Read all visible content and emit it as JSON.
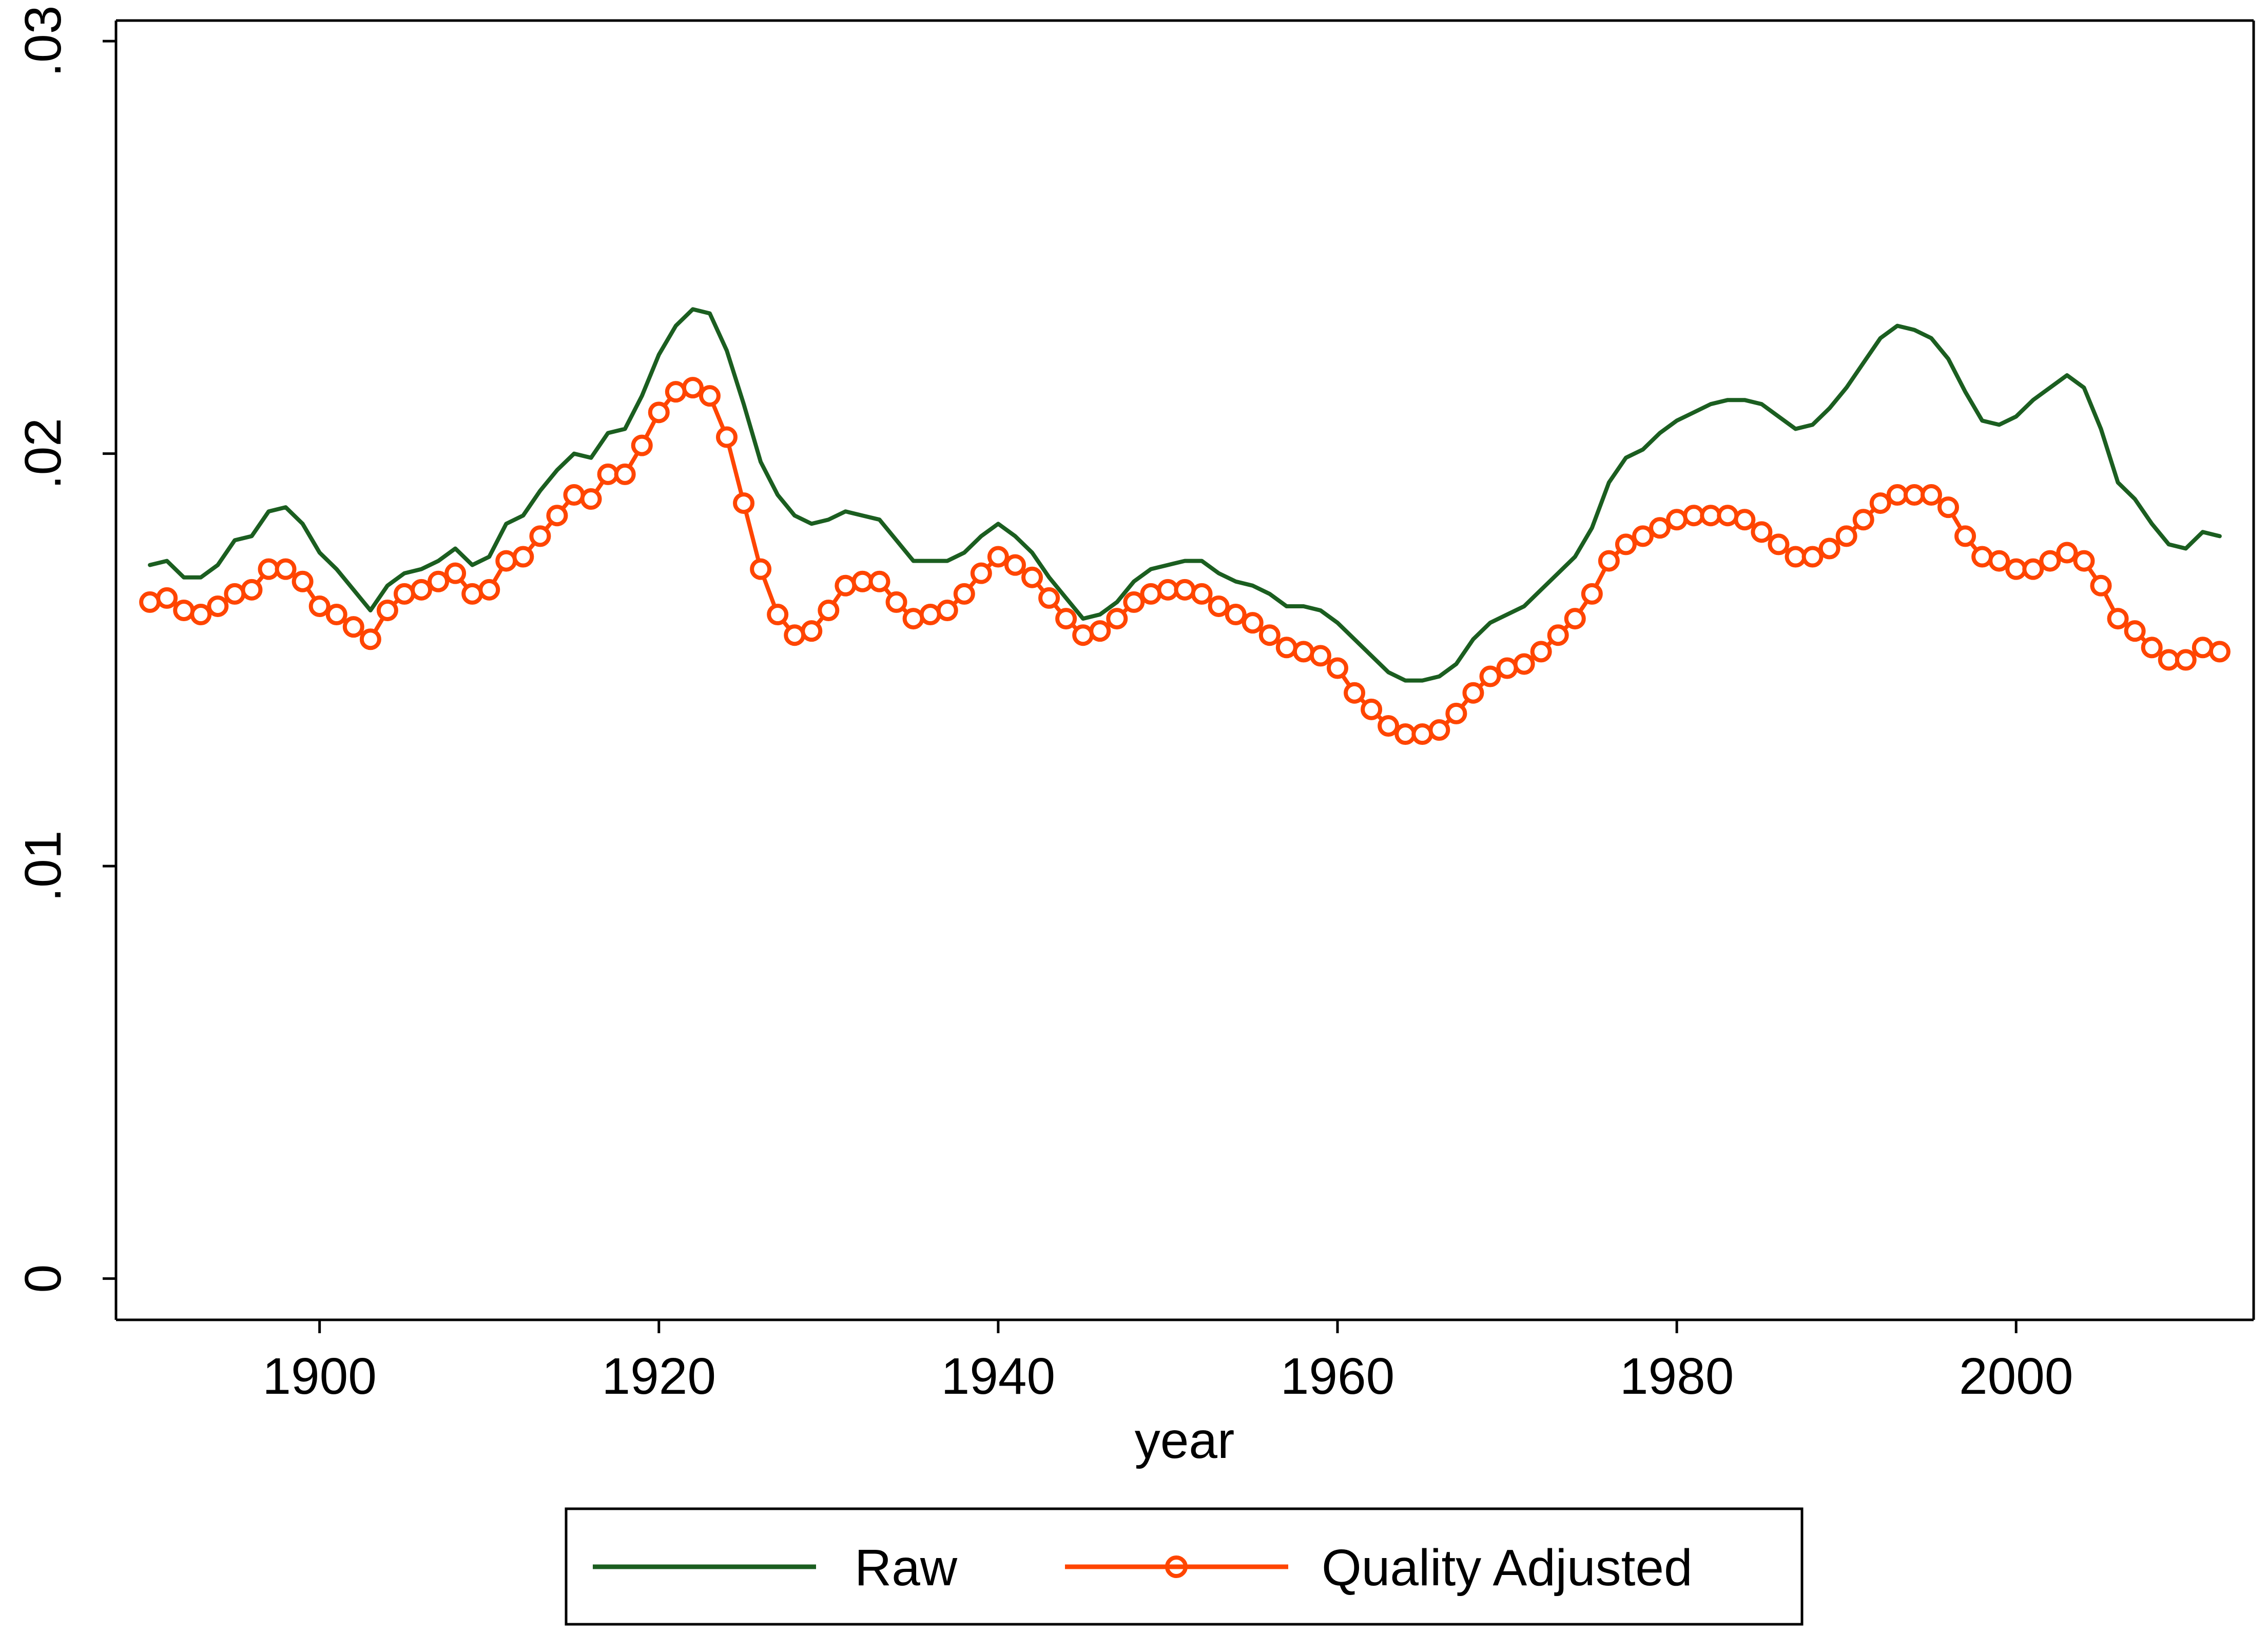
{
  "chart_data": {
    "type": "line",
    "title": "",
    "xlabel": "year",
    "ylabel": "",
    "xlim": [
      1888,
      2014
    ],
    "ylim": [
      -0.001,
      0.0305
    ],
    "x_ticks": [
      1900,
      1920,
      1940,
      1960,
      1980,
      2000
    ],
    "x_tick_labels": [
      "1900",
      "1920",
      "1940",
      "1960",
      "1980",
      "2000"
    ],
    "y_ticks": [
      0,
      0.01,
      0.02,
      0.03
    ],
    "y_tick_labels": [
      "0",
      ".01",
      ".02",
      ".03"
    ],
    "grid": false,
    "legend": {
      "position": "bottom",
      "entries": [
        "Raw",
        "Quality Adjusted"
      ]
    },
    "x": [
      1890,
      1891,
      1892,
      1893,
      1894,
      1895,
      1896,
      1897,
      1898,
      1899,
      1900,
      1901,
      1902,
      1903,
      1904,
      1905,
      1906,
      1907,
      1908,
      1909,
      1910,
      1911,
      1912,
      1913,
      1914,
      1915,
      1916,
      1917,
      1918,
      1919,
      1920,
      1921,
      1922,
      1923,
      1924,
      1925,
      1926,
      1927,
      1928,
      1929,
      1930,
      1931,
      1932,
      1933,
      1934,
      1935,
      1936,
      1937,
      1938,
      1939,
      1940,
      1941,
      1942,
      1943,
      1944,
      1945,
      1946,
      1947,
      1948,
      1949,
      1950,
      1951,
      1952,
      1953,
      1954,
      1955,
      1956,
      1957,
      1958,
      1959,
      1960,
      1961,
      1962,
      1963,
      1964,
      1965,
      1966,
      1967,
      1968,
      1969,
      1970,
      1971,
      1972,
      1973,
      1974,
      1975,
      1976,
      1977,
      1978,
      1979,
      1980,
      1981,
      1982,
      1983,
      1984,
      1985,
      1986,
      1987,
      1988,
      1989,
      1990,
      1991,
      1992,
      1993,
      1994,
      1995,
      1996,
      1997,
      1998,
      1999,
      2000,
      2001,
      2002,
      2003,
      2004,
      2005,
      2006,
      2007,
      2008,
      2009,
      2010,
      2011,
      2012
    ],
    "series": [
      {
        "name": "Raw",
        "color": "#1b5e20",
        "marker": "none",
        "values": [
          0.0173,
          0.0174,
          0.017,
          0.017,
          0.0173,
          0.0179,
          0.018,
          0.0186,
          0.0187,
          0.0183,
          0.0176,
          0.0172,
          0.0167,
          0.0162,
          0.0168,
          0.0171,
          0.0172,
          0.0174,
          0.0177,
          0.0173,
          0.0175,
          0.0183,
          0.0185,
          0.0191,
          0.0196,
          0.02,
          0.0199,
          0.0205,
          0.0206,
          0.0214,
          0.0224,
          0.0231,
          0.0235,
          0.0234,
          0.0225,
          0.0212,
          0.0198,
          0.019,
          0.0185,
          0.0183,
          0.0184,
          0.0186,
          0.0185,
          0.0184,
          0.0179,
          0.0174,
          0.0174,
          0.0174,
          0.0176,
          0.018,
          0.0183,
          0.018,
          0.0176,
          0.017,
          0.0165,
          0.016,
          0.0161,
          0.0164,
          0.0169,
          0.0172,
          0.0173,
          0.0174,
          0.0174,
          0.0171,
          0.0169,
          0.0168,
          0.0166,
          0.0163,
          0.0163,
          0.0162,
          0.0159,
          0.0155,
          0.0151,
          0.0147,
          0.0145,
          0.0145,
          0.0146,
          0.0149,
          0.0155,
          0.0159,
          0.0161,
          0.0163,
          0.0167,
          0.0171,
          0.0175,
          0.0182,
          0.0193,
          0.0199,
          0.0201,
          0.0205,
          0.0208,
          0.021,
          0.0212,
          0.0213,
          0.0213,
          0.0212,
          0.0209,
          0.0206,
          0.0207,
          0.0211,
          0.0216,
          0.0222,
          0.0228,
          0.0231,
          0.023,
          0.0228,
          0.0223,
          0.0215,
          0.0208,
          0.0207,
          0.0209,
          0.0213,
          0.0216,
          0.0219,
          0.0216,
          0.0206,
          0.0193,
          0.0189,
          0.0183,
          0.0178,
          0.0177,
          0.0181,
          0.018
        ]
      },
      {
        "name": "Quality Adjusted",
        "color": "#ff4500",
        "marker": "circle",
        "values": [
          0.0164,
          0.0165,
          0.0162,
          0.0161,
          0.0163,
          0.0166,
          0.0167,
          0.0172,
          0.0172,
          0.0169,
          0.0163,
          0.0161,
          0.0158,
          0.0155,
          0.0162,
          0.0166,
          0.0167,
          0.0169,
          0.0171,
          0.0166,
          0.0167,
          0.0174,
          0.0175,
          0.018,
          0.0185,
          0.019,
          0.0189,
          0.0195,
          0.0195,
          0.0202,
          0.021,
          0.0215,
          0.0216,
          0.0214,
          0.0204,
          0.0188,
          0.0172,
          0.0161,
          0.0156,
          0.0157,
          0.0162,
          0.0168,
          0.0169,
          0.0169,
          0.0164,
          0.016,
          0.0161,
          0.0162,
          0.0166,
          0.0171,
          0.0175,
          0.0173,
          0.017,
          0.0165,
          0.016,
          0.0156,
          0.0157,
          0.016,
          0.0164,
          0.0166,
          0.0167,
          0.0167,
          0.0166,
          0.0163,
          0.0161,
          0.0159,
          0.0156,
          0.0153,
          0.0152,
          0.0151,
          0.0148,
          0.0142,
          0.0138,
          0.0134,
          0.0132,
          0.0132,
          0.0133,
          0.0137,
          0.0142,
          0.0146,
          0.0148,
          0.0149,
          0.0152,
          0.0156,
          0.016,
          0.0166,
          0.0174,
          0.0178,
          0.018,
          0.0182,
          0.0184,
          0.0185,
          0.0185,
          0.0185,
          0.0184,
          0.0181,
          0.0178,
          0.0175,
          0.0175,
          0.0177,
          0.018,
          0.0184,
          0.0188,
          0.019,
          0.019,
          0.019,
          0.0187,
          0.018,
          0.0175,
          0.0174,
          0.0172,
          0.0172,
          0.0174,
          0.0176,
          0.0174,
          0.0168,
          0.016,
          0.0157,
          0.0153,
          0.015,
          0.015,
          0.0153,
          0.0152
        ]
      }
    ]
  }
}
